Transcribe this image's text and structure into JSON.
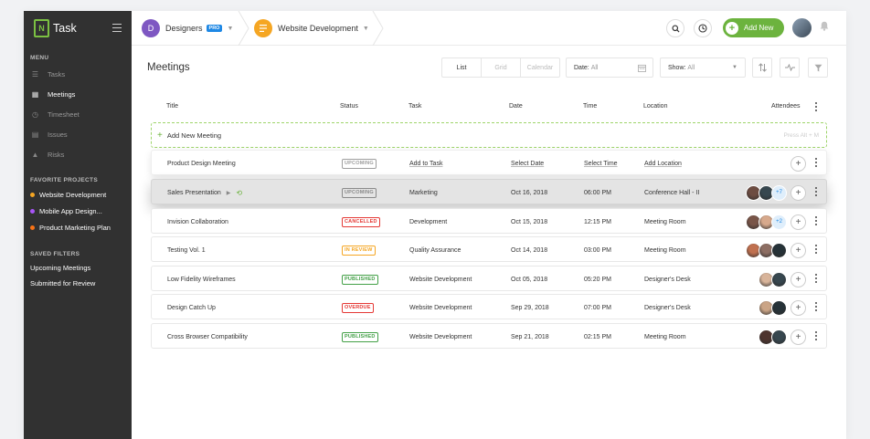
{
  "sidebar": {
    "brand": "Task",
    "menu_title": "MENU",
    "menu": [
      {
        "label": "Tasks",
        "icon": "tasks-icon"
      },
      {
        "label": "Meetings",
        "icon": "calendar-icon",
        "active": true
      },
      {
        "label": "Timesheet",
        "icon": "timer-icon"
      },
      {
        "label": "Issues",
        "icon": "issues-icon"
      },
      {
        "label": "Risks",
        "icon": "warning-icon"
      }
    ],
    "favorites_title": "FAVORITE PROJECTS",
    "favorites": [
      {
        "label": "Website Development",
        "color": "#f5a623"
      },
      {
        "label": "Mobile App Design...",
        "color": "#a855f7"
      },
      {
        "label": "Product Marketing Plan",
        "color": "#f97316"
      }
    ],
    "filters_title": "SAVED FILTERS",
    "filters": [
      "Upcoming Meetings",
      "Submitted for Review"
    ]
  },
  "header": {
    "workspace": {
      "initial": "D",
      "name": "Designers",
      "badge": "PRO",
      "color": "#7e57c2"
    },
    "project": {
      "name": "Website Development",
      "color": "#f5a623"
    },
    "add_new_label": "Add New"
  },
  "main": {
    "title": "Meetings",
    "views": [
      "List",
      "Grid",
      "Calendar"
    ],
    "date_filter": {
      "label": "Date:",
      "value": "All"
    },
    "show_filter": {
      "label": "Show:",
      "value": "All"
    },
    "columns": [
      "Title",
      "Status",
      "Task",
      "Date",
      "Time",
      "Location",
      "Attendees"
    ],
    "add_meeting_label": "Add New Meeting",
    "add_meeting_hint": "Press Alt + M",
    "rows": [
      {
        "title": "Product Design Meeting",
        "status": "UPCOMING",
        "status_color": "#9e9e9e",
        "task": "Add to Task",
        "date": "Select Date",
        "time": "Select Time",
        "location": "Add Location",
        "placeholder": true,
        "attendees": []
      },
      {
        "title": "Sales Presentation",
        "status": "UPCOMING",
        "status_color": "#8a8a8a",
        "task": "Marketing",
        "date": "Oct 16, 2018",
        "time": "06:00 PM",
        "location": "Conference Hall - II",
        "attendees": [
          "#6d4c41",
          "#37474f"
        ],
        "more": "+7"
      },
      {
        "title": "Invision Collaboration",
        "status": "CANCELLED",
        "status_color": "#e53935",
        "task": "Development",
        "date": "Oct 15, 2018",
        "time": "12:15 PM",
        "location": "Meeting Room",
        "attendees": [
          "#795548",
          "#d7a98c"
        ],
        "more": "+2"
      },
      {
        "title": "Testing Vol. 1",
        "status": "IN REVIEW",
        "status_color": "#f5a623",
        "task": "Quality Assurance",
        "date": "Oct 14, 2018",
        "time": "03:00 PM",
        "location": "Meeting Room",
        "attendees": [
          "#c0704f",
          "#8d6e63",
          "#263238"
        ]
      },
      {
        "title": "Low Fidelity Wireframes",
        "status": "PUBLISHED",
        "status_color": "#43a047",
        "task": "Website Development",
        "date": "Oct 05, 2018",
        "time": "05:20 PM",
        "location": "Designer's Desk",
        "attendees": [
          "#d8b49a",
          "#37474f"
        ]
      },
      {
        "title": "Design Catch Up",
        "status": "OVERDUE",
        "status_color": "#e53935",
        "task": "Website Development",
        "date": "Sep 29, 2018",
        "time": "07:00 PM",
        "location": "Designer's Desk",
        "attendees": [
          "#caa486",
          "#263238"
        ]
      },
      {
        "title": "Cross Browser Compatibility",
        "status": "PUBLISHED",
        "status_color": "#43a047",
        "task": "Website Development",
        "date": "Sep 21, 2018",
        "time": "02:15 PM",
        "location": "Meeting Room",
        "attendees": [
          "#4e342e",
          "#37474f"
        ]
      }
    ]
  }
}
